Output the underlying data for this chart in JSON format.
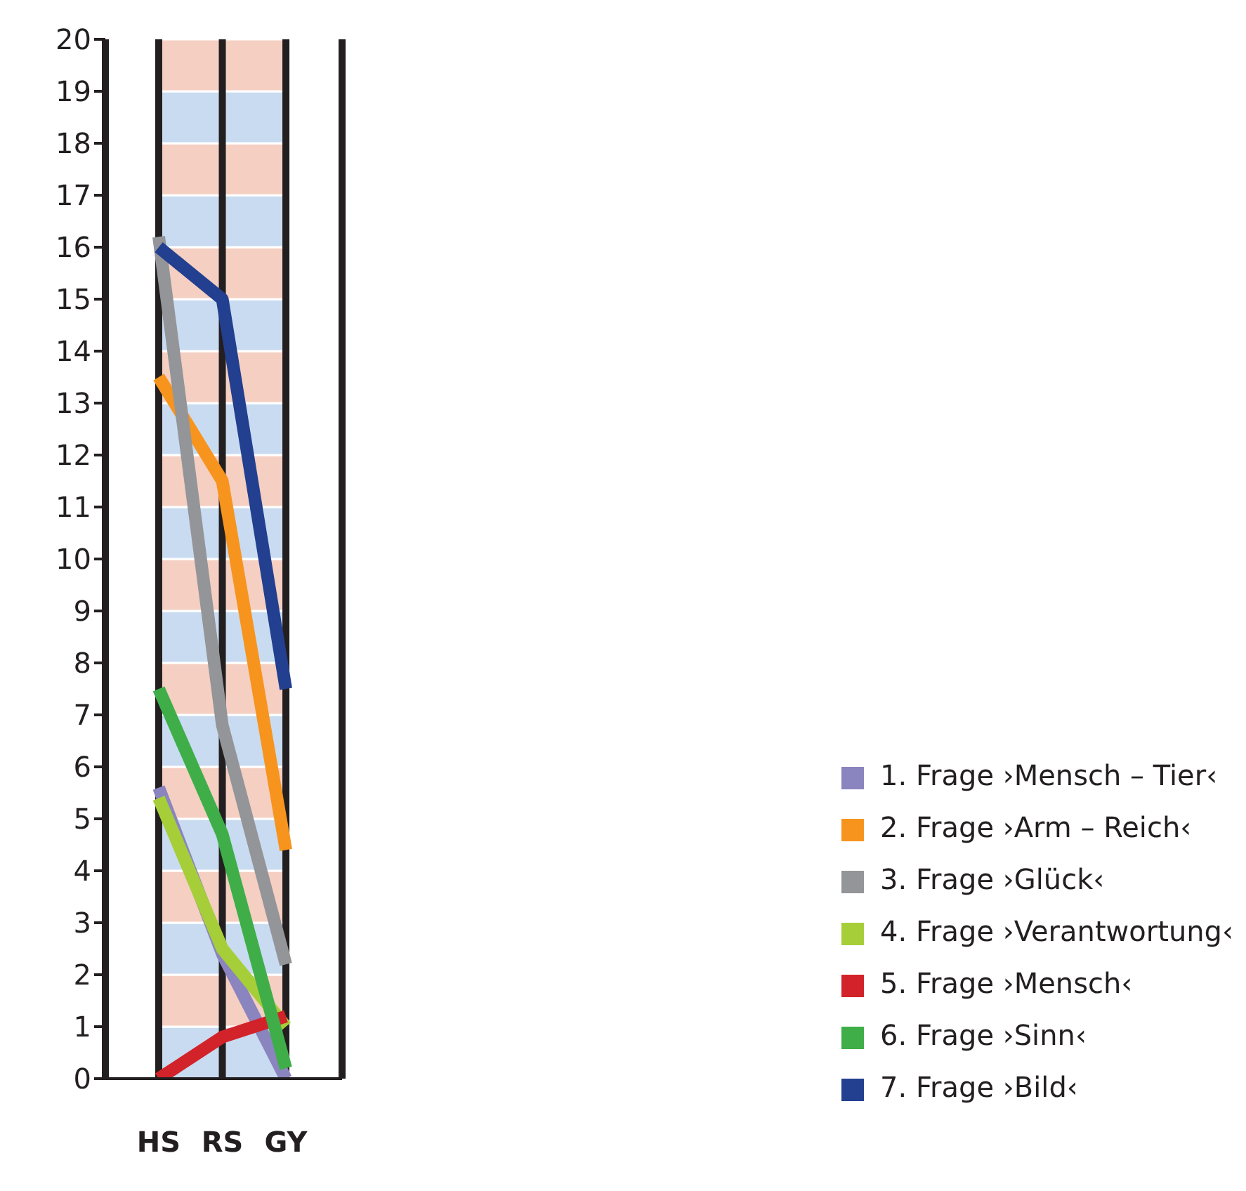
{
  "chart_data": {
    "type": "line",
    "categories": [
      "HS",
      "RS",
      "GY"
    ],
    "series": [
      {
        "name": "1. Frage ›Mensch – Tier‹",
        "color": "#8a84bf",
        "values": [
          5.6,
          2.4,
          0
        ]
      },
      {
        "name": "2. Frage ›Arm – Reich‹",
        "color": "#f7941e",
        "values": [
          13.5,
          11.5,
          4.4
        ]
      },
      {
        "name": "3. Frage ›Glück‹",
        "color": "#939598",
        "values": [
          16.2,
          6.8,
          2.2
        ]
      },
      {
        "name": "4. Frage ›Verantwortung‹",
        "color": "#a6ce39",
        "values": [
          5.4,
          2.5,
          1.0
        ]
      },
      {
        "name": "5. Frage ›Mensch‹",
        "color": "#d2232a",
        "values": [
          0,
          0.8,
          1.2
        ]
      },
      {
        "name": "6. Frage ›Sinn‹",
        "color": "#3fae49",
        "values": [
          7.5,
          4.7,
          0.2
        ]
      },
      {
        "name": "7. Frage ›Bild‹",
        "color": "#233f8f",
        "values": [
          16,
          15,
          7.5
        ]
      }
    ],
    "ylim": [
      0,
      20
    ],
    "yticks": [
      0,
      1,
      2,
      3,
      4,
      5,
      6,
      7,
      8,
      9,
      10,
      11,
      12,
      13,
      14,
      15,
      16,
      17,
      18,
      19,
      20
    ],
    "bands": [
      {
        "axis": "y",
        "from": 0,
        "to": 1,
        "color": "#c9dbf0"
      },
      {
        "axis": "y",
        "from": 1,
        "to": 2,
        "color": "#f4cfc2"
      },
      {
        "axis": "y",
        "from": 2,
        "to": 3,
        "color": "#c9dbf0"
      },
      {
        "axis": "y",
        "from": 3,
        "to": 4,
        "color": "#f4cfc2"
      },
      {
        "axis": "y",
        "from": 4,
        "to": 5,
        "color": "#c9dbf0"
      },
      {
        "axis": "y",
        "from": 5,
        "to": 6,
        "color": "#f4cfc2"
      },
      {
        "axis": "y",
        "from": 6,
        "to": 7,
        "color": "#c9dbf0"
      },
      {
        "axis": "y",
        "from": 7,
        "to": 8,
        "color": "#f4cfc2"
      },
      {
        "axis": "y",
        "from": 8,
        "to": 9,
        "color": "#c9dbf0"
      },
      {
        "axis": "y",
        "from": 9,
        "to": 10,
        "color": "#f4cfc2"
      },
      {
        "axis": "y",
        "from": 10,
        "to": 11,
        "color": "#c9dbf0"
      },
      {
        "axis": "y",
        "from": 11,
        "to": 12,
        "color": "#f4cfc2"
      },
      {
        "axis": "y",
        "from": 12,
        "to": 13,
        "color": "#c9dbf0"
      },
      {
        "axis": "y",
        "from": 13,
        "to": 14,
        "color": "#f4cfc2"
      },
      {
        "axis": "y",
        "from": 14,
        "to": 15,
        "color": "#c9dbf0"
      },
      {
        "axis": "y",
        "from": 15,
        "to": 16,
        "color": "#f4cfc2"
      },
      {
        "axis": "y",
        "from": 16,
        "to": 17,
        "color": "#c9dbf0"
      },
      {
        "axis": "y",
        "from": 17,
        "to": 18,
        "color": "#f4cfc2"
      },
      {
        "axis": "y",
        "from": 18,
        "to": 19,
        "color": "#c9dbf0"
      },
      {
        "axis": "y",
        "from": 19,
        "to": 20,
        "color": "#f4cfc2"
      }
    ],
    "grid": "x",
    "legend": "bottom right",
    "marker": "none",
    "line_style": "solid"
  }
}
